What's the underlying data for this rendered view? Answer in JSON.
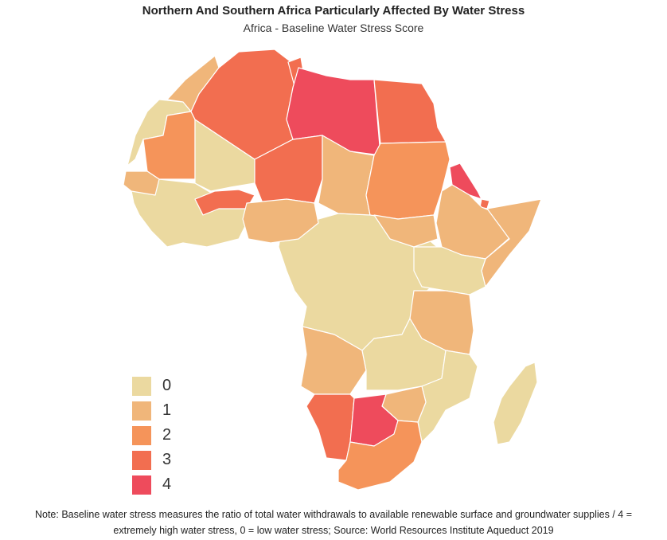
{
  "title": "Northern And Southern Africa Particularly Affected By Water Stress",
  "subtitle": "Africa - Baseline Water Stress Score",
  "legend": [
    {
      "label": "0",
      "color": "#ebd9a0"
    },
    {
      "label": "1",
      "color": "#f0b67a"
    },
    {
      "label": "2",
      "color": "#f5945a"
    },
    {
      "label": "3",
      "color": "#f26e50"
    },
    {
      "label": "4",
      "color": "#ee4b5c"
    }
  ],
  "note_line1": "Note: Baseline water stress measures the ratio of total water withdrawals to available renewable surface and groundwater supplies / 4 =",
  "note_line2": "extremely high water stress, 0 = low water stress; Source: World Resources Institute Aqueduct 2019",
  "regions": [
    {
      "name": "Morocco",
      "score": 1
    },
    {
      "name": "Western Sahara",
      "score": 0
    },
    {
      "name": "Mauritania",
      "score": 2
    },
    {
      "name": "Algeria",
      "score": 3
    },
    {
      "name": "Tunisia",
      "score": 3
    },
    {
      "name": "Libya",
      "score": 4
    },
    {
      "name": "Egypt",
      "score": 3
    },
    {
      "name": "Mali",
      "score": 0
    },
    {
      "name": "Niger",
      "score": 3
    },
    {
      "name": "Burkina Faso",
      "score": 3
    },
    {
      "name": "Chad",
      "score": 1
    },
    {
      "name": "Sudan",
      "score": 2
    },
    {
      "name": "Eritrea",
      "score": 4
    },
    {
      "name": "Djibouti",
      "score": 3
    },
    {
      "name": "Ethiopia",
      "score": 1
    },
    {
      "name": "Somalia",
      "score": 1
    },
    {
      "name": "Senegal",
      "score": 1
    },
    {
      "name": "West Coast",
      "score": 0
    },
    {
      "name": "Nigeria",
      "score": 1
    },
    {
      "name": "Central Africa",
      "score": 0
    },
    {
      "name": "South Sudan",
      "score": 1
    },
    {
      "name": "East Africa",
      "score": 0
    },
    {
      "name": "Tanzania",
      "score": 1
    },
    {
      "name": "Angola",
      "score": 1
    },
    {
      "name": "Zambia",
      "score": 0
    },
    {
      "name": "Mozambique",
      "score": 0
    },
    {
      "name": "Zimbabwe",
      "score": 1
    },
    {
      "name": "Namibia",
      "score": 3
    },
    {
      "name": "Botswana",
      "score": 4
    },
    {
      "name": "South Africa",
      "score": 2
    },
    {
      "name": "Madagascar",
      "score": 0
    }
  ]
}
